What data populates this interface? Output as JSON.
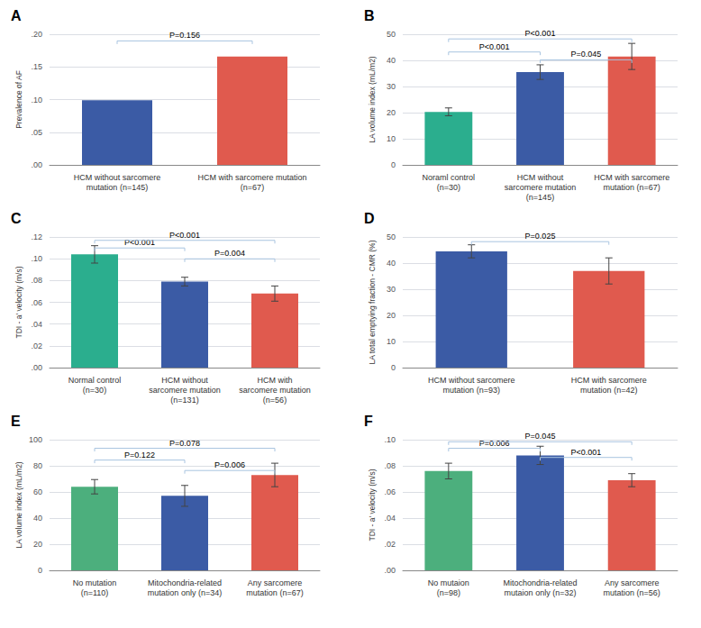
{
  "chart_data": [
    {
      "type": "bar",
      "title": "A",
      "categories": [
        "HCM without sarcomere\nmutation (n=145)",
        "HCM with sarcomere mutation\n(n=67)"
      ],
      "values": [
        0.099,
        0.166
      ],
      "errors": [
        0,
        0
      ],
      "colors": [
        "#3B5BA5",
        "#E05A4E"
      ],
      "ylabel": "Prevalence of AF",
      "ylim": [
        0,
        0.2
      ],
      "yticks": [
        {
          "value": 0.0,
          "label": ".00"
        },
        {
          "value": 0.05,
          "label": ".05"
        },
        {
          "value": 0.1,
          "label": ".10"
        },
        {
          "value": 0.15,
          "label": ".15"
        },
        {
          "value": 0.2,
          "label": ".20"
        }
      ],
      "grid": true,
      "annotations": [
        {
          "from": "HCM without sarcomere\nmutation (n=145)",
          "to": "HCM with sarcomere mutation\n(n=67)",
          "text": "P=0.156",
          "y": 0.185,
          "color": "#A8C4E0"
        }
      ]
    },
    {
      "type": "bar",
      "title": "B",
      "categories": [
        "Noraml control\n(n=30)",
        "HCM without\nsarcomere mutation\n(n=145)",
        "HCM with sarcomere\nmutation (n=67)"
      ],
      "values": [
        20.3,
        35.5,
        41.5
      ],
      "errors": [
        1.5,
        2.8,
        5.0
      ],
      "colors": [
        "#2BAE8E",
        "#3B5BA5",
        "#E05A4E"
      ],
      "ylabel": "LA volume index (mL/m2)",
      "ylim": [
        0,
        50
      ],
      "yticks": [
        0,
        10,
        20,
        30,
        40,
        50
      ],
      "grid": true,
      "annotations": [
        {
          "from": "Noraml control\n(n=30)",
          "to": "HCM without\nsarcomere mutation\n(n=145)",
          "text": "P<0.001",
          "y": 42,
          "color": "#A8C4E0"
        },
        {
          "from": "HCM without\nsarcomere mutation\n(n=145)",
          "to": "HCM with sarcomere\nmutation (n=67)",
          "text": "P=0.045",
          "y": 39,
          "color": "#A8C4E0"
        },
        {
          "from": "Noraml control\n(n=30)",
          "to": "HCM with sarcomere\nmutation (n=67)",
          "text": "P<0.001",
          "y": 47,
          "color": "#A8C4E0"
        }
      ]
    },
    {
      "type": "bar",
      "title": "C",
      "categories": [
        "Normal control\n(n=30)",
        "HCM without\nsarcomere mutation\n(n=131)",
        "HCM with\nsarcomere mutation\n(n=56)"
      ],
      "values": [
        0.104,
        0.079,
        0.068
      ],
      "errors": [
        0.008,
        0.004,
        0.007
      ],
      "colors": [
        "#2BAE8E",
        "#3B5BA5",
        "#E05A4E"
      ],
      "ylabel": "TDI - a' velocity (m/s)",
      "ylim": [
        0,
        0.12
      ],
      "yticks": [
        {
          "value": 0.0,
          "label": ".00"
        },
        {
          "value": 0.02,
          "label": ".02"
        },
        {
          "value": 0.04,
          "label": ".04"
        },
        {
          "value": 0.06,
          "label": ".06"
        },
        {
          "value": 0.08,
          "label": ".08"
        },
        {
          "value": 0.1,
          "label": ".10"
        },
        {
          "value": 0.12,
          "label": ".12"
        }
      ],
      "grid": true,
      "annotations": [
        {
          "from": "Normal control\n(n=30)",
          "to": "HCM without\nsarcomere mutation\n(n=131)",
          "text": "P<0.001",
          "y": 0.107,
          "color": "#A8C4E0"
        },
        {
          "from": "HCM without\nsarcomere mutation\n(n=131)",
          "to": "HCM with\nsarcomere mutation\n(n=56)",
          "text": "P=0.004",
          "y": 0.097,
          "color": "#A8C4E0"
        },
        {
          "from": "Normal control\n(n=30)",
          "to": "HCM with\nsarcomere mutation\n(n=56)",
          "text": "P<0.001",
          "y": 0.114,
          "color": "#A8C4E0"
        }
      ]
    },
    {
      "type": "bar",
      "title": "D",
      "categories": [
        "HCM without sarcomere\nmutation (n=93)",
        "HCM with sarcomere\nmutation (n=42)"
      ],
      "values": [
        44.5,
        37.0
      ],
      "errors": [
        2.5,
        5.0
      ],
      "colors": [
        "#3B5BA5",
        "#E05A4E"
      ],
      "ylabel": "LA total emptying fraction - CMR (%)",
      "ylim": [
        0,
        50
      ],
      "yticks": [
        0,
        10,
        20,
        30,
        40,
        50
      ],
      "grid": true,
      "annotations": [
        {
          "from": "HCM without sarcomere\nmutation (n=93)",
          "to": "HCM with sarcomere\nmutation (n=42)",
          "text": "P=0.025",
          "y": 47,
          "color": "#A8C4E0"
        }
      ]
    },
    {
      "type": "bar",
      "title": "E",
      "categories": [
        "No mutation\n(n=110)",
        "Mitochondria-related\nmutation only (n=34)",
        "Any sarcomere\nmutation (n=67)"
      ],
      "values": [
        64.0,
        57.0,
        73.0
      ],
      "errors": [
        5.5,
        8.0,
        9.0
      ],
      "colors": [
        "#4CAF7D",
        "#3B5BA5",
        "#E05A4E"
      ],
      "ylabel": "LA volume index (mL/m2)",
      "ylim": [
        0,
        100
      ],
      "yticks": [
        0,
        20,
        40,
        60,
        80,
        100
      ],
      "grid": true,
      "annotations": [
        {
          "from": "No mutation\n(n=110)",
          "to": "Mitochondria-related\nmutation only (n=34)",
          "text": "P=0.122",
          "y": 82,
          "color": "#A8C4E0"
        },
        {
          "from": "Mitochondria-related\nmutation only (n=34)",
          "to": "Any sarcomere\nmutation (n=67)",
          "text": "P=0.006",
          "y": 74,
          "color": "#A8C4E0"
        },
        {
          "from": "No mutation\n(n=110)",
          "to": "Any sarcomere\nmutation (n=67)",
          "text": "P=0.078",
          "y": 91,
          "color": "#A8C4E0"
        }
      ]
    },
    {
      "type": "bar",
      "title": "F",
      "categories": [
        "No mutaion\n(n=98)",
        "Mitochondria-related\nmutaion only (n=32)",
        "Any sarcomere\nmutation (n=56)"
      ],
      "values": [
        0.076,
        0.088,
        0.069
      ],
      "errors": [
        0.006,
        0.007,
        0.005
      ],
      "colors": [
        "#4CAF7D",
        "#3B5BA5",
        "#E05A4E"
      ],
      "ylabel": "TDI - a' velocity (m/s)",
      "ylim": [
        0,
        0.1
      ],
      "yticks": [
        {
          "value": 0.0,
          "label": ".00"
        },
        {
          "value": 0.02,
          "label": ".02"
        },
        {
          "value": 0.04,
          "label": ".04"
        },
        {
          "value": 0.06,
          "label": ".06"
        },
        {
          "value": 0.08,
          "label": ".08"
        },
        {
          "value": 0.1,
          "label": ".10"
        }
      ],
      "grid": true,
      "annotations": [
        {
          "from": "No mutaion\n(n=98)",
          "to": "Mitochondria-related\nmutaion only (n=32)",
          "text": "P=0.006",
          "y": 0.091,
          "color": "#A8C4E0"
        },
        {
          "from": "Mitochondria-related\nmutaion only (n=32)",
          "to": "Any sarcomere\nmutation (n=56)",
          "text": "P<0.001",
          "y": 0.084,
          "color": "#A8C4E0"
        },
        {
          "from": "No mutaion\n(n=98)",
          "to": "Any sarcomere\nmutation (n=56)",
          "text": "P=0.045",
          "y": 0.096,
          "color": "#A8C4E0"
        }
      ]
    }
  ]
}
